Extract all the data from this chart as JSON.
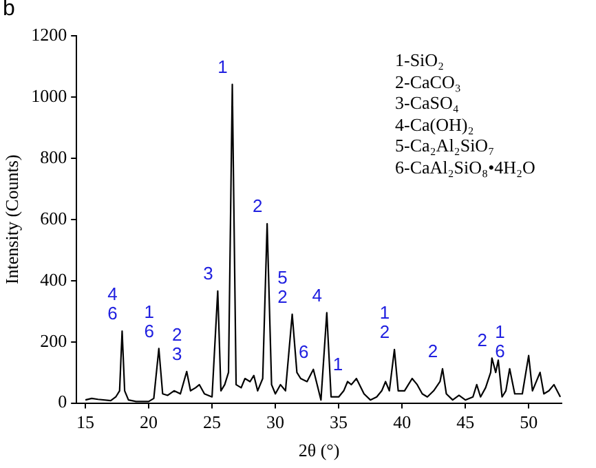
{
  "chart_data": {
    "type": "line",
    "title": "b",
    "xlabel": "2θ (°)",
    "ylabel": "Intensity (Counts)",
    "xlim": [
      14.3,
      52.6
    ],
    "ylim": [
      0,
      1200
    ],
    "xticks": [
      15,
      20,
      25,
      30,
      35,
      40,
      45,
      50
    ],
    "yticks": [
      0,
      200,
      400,
      600,
      800,
      1000,
      1200
    ],
    "grid": false,
    "legend": false,
    "marker": "none",
    "line_style": "solid",
    "series": [
      {
        "color": "#000000",
        "x": [
          15,
          15.5,
          16,
          17,
          17.4,
          17.7,
          17.9,
          18.1,
          18.4,
          19,
          20,
          20.4,
          20.8,
          21.1,
          21.5,
          22,
          22.5,
          23,
          23.3,
          23.7,
          24,
          24.4,
          25,
          25.45,
          25.7,
          26,
          26.3,
          26.6,
          26.9,
          27.3,
          27.6,
          28,
          28.3,
          28.6,
          29,
          29.35,
          29.7,
          30,
          30.4,
          30.8,
          31.33,
          31.7,
          32,
          32.5,
          33,
          33.3,
          33.6,
          34.06,
          34.4,
          35,
          35.4,
          35.7,
          36,
          36.4,
          37,
          37.5,
          38,
          38.4,
          38.7,
          39,
          39.4,
          39.7,
          40.2,
          40.5,
          40.8,
          41.2,
          41.6,
          42,
          42.5,
          43,
          43.2,
          43.5,
          44,
          44.5,
          45,
          45.6,
          45.9,
          46.2,
          46.6,
          47,
          47.1,
          47.4,
          47.6,
          47.9,
          48.2,
          48.5,
          48.9,
          49.5,
          50,
          50.3,
          50.9,
          51.2,
          51.6,
          52,
          52.5
        ],
        "values": [
          10,
          15,
          12,
          8,
          20,
          40,
          235,
          40,
          10,
          5,
          5,
          15,
          178,
          30,
          25,
          40,
          30,
          103,
          40,
          50,
          60,
          30,
          20,
          366,
          40,
          60,
          100,
          1041,
          60,
          50,
          80,
          70,
          90,
          40,
          80,
          586,
          60,
          30,
          60,
          40,
          290,
          100,
          80,
          70,
          110,
          60,
          10,
          295,
          20,
          20,
          40,
          70,
          60,
          80,
          30,
          10,
          20,
          40,
          70,
          40,
          175,
          40,
          40,
          60,
          80,
          60,
          30,
          20,
          40,
          70,
          112,
          30,
          10,
          25,
          10,
          20,
          60,
          20,
          50,
          100,
          147,
          100,
          140,
          20,
          40,
          112,
          30,
          30,
          155,
          40,
          100,
          30,
          40,
          60,
          20
        ]
      }
    ],
    "annotations": [
      "1-SiO₂",
      "2-CaCO₃",
      "3-CaSO₄",
      "4-Ca(OH)₂",
      "5-Ca₂Al₂SiO₇",
      "6-CaAl₂SiO₈•4H₂O",
      {
        "text": "1",
        "x": 26.6,
        "y": 1041
      },
      {
        "text": "2",
        "x": 29.35,
        "y": 586
      },
      {
        "text": "3",
        "x": 25.45,
        "y": 366
      },
      {
        "text": "5\n2",
        "x": 31.33,
        "y": 290
      },
      {
        "text": "4",
        "x": 34.06,
        "y": 295
      },
      {
        "text": "6",
        "x": 33,
        "y": 110
      },
      {
        "text": "4\n6",
        "x": 17.9,
        "y": 235
      },
      {
        "text": "1\n6",
        "x": 20.8,
        "y": 178
      },
      {
        "text": "2\n3",
        "x": 23,
        "y": 103
      },
      {
        "text": "1",
        "x": 35.7,
        "y": 70
      },
      {
        "text": "1\n2",
        "x": 39.4,
        "y": 175
      },
      {
        "text": "2",
        "x": 43.2,
        "y": 112
      },
      {
        "text": "2",
        "x": 47.1,
        "y": 147
      },
      {
        "text": "1\n6",
        "x": 48.5,
        "y": 112
      }
    ]
  }
}
